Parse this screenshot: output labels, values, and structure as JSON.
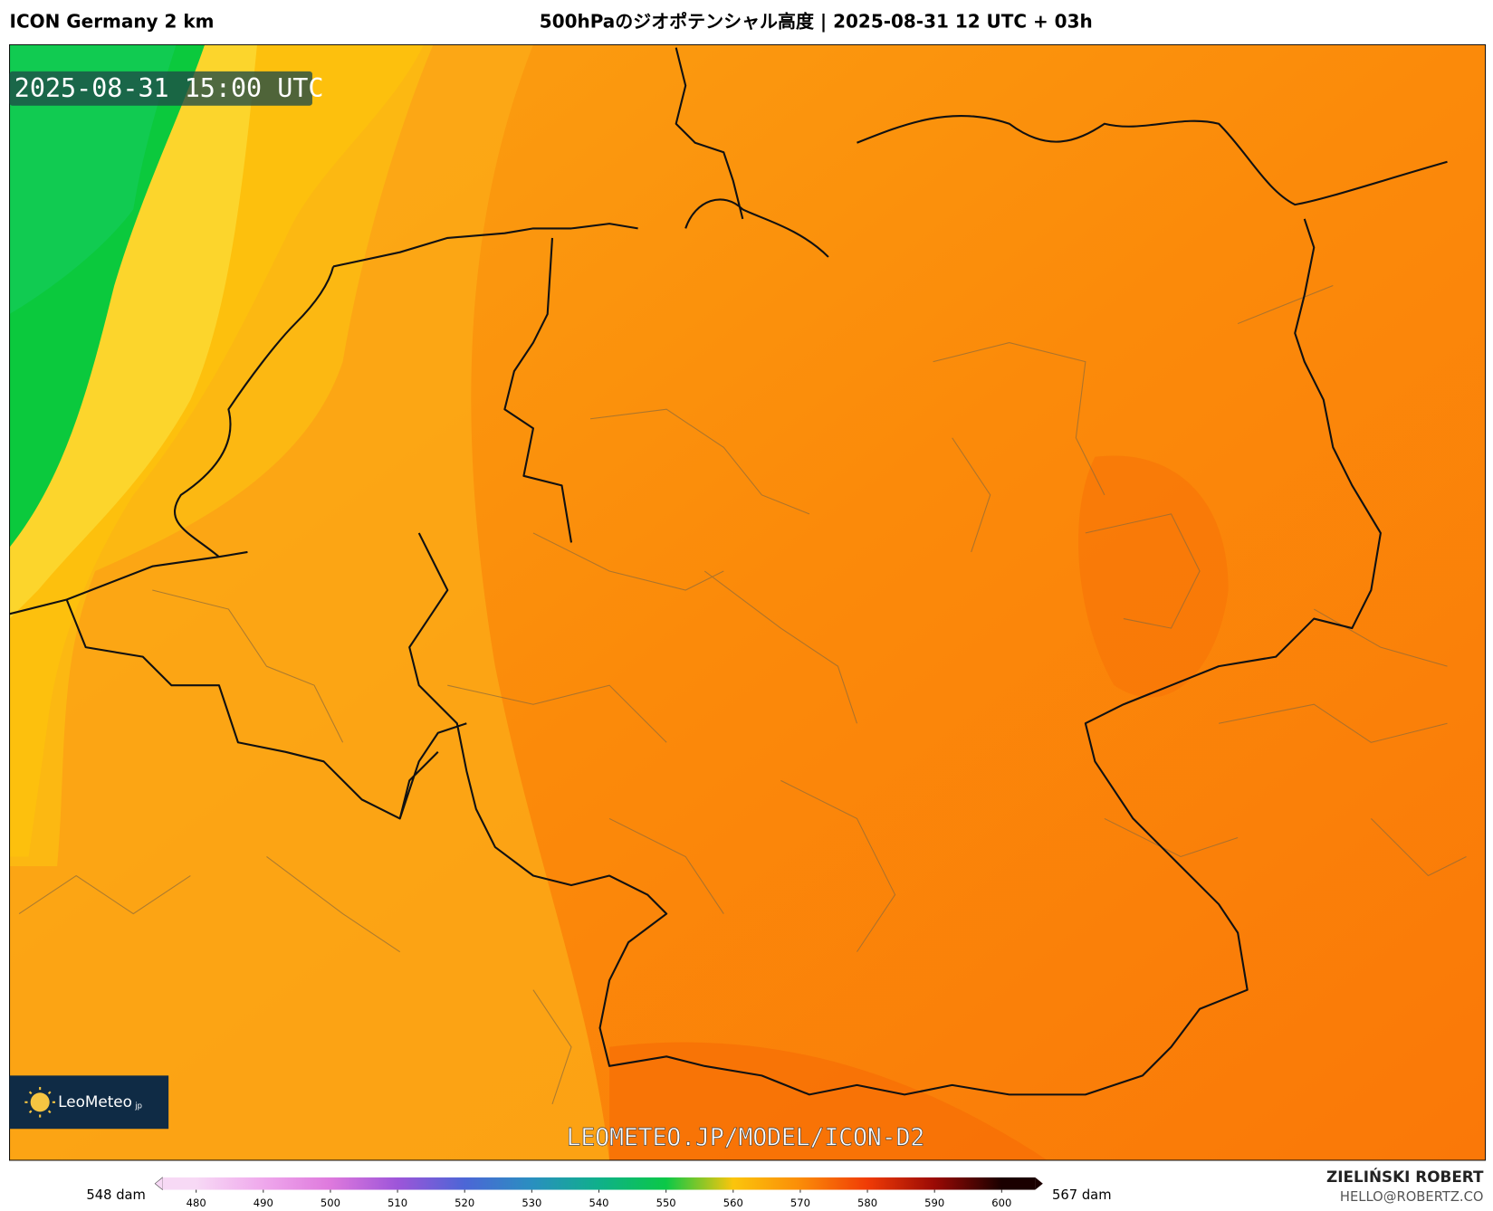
{
  "header": {
    "model": "ICON Germany 2 km",
    "title": "500hPaのジオポテンシャル高度 | 2025-08-31 12 UTC + 03h"
  },
  "map": {
    "valid_time": "2025-08-31 15:00 UTC",
    "watermark": "LEOMETEO.JP/MODEL/ICON-D2",
    "logo": "LeoMeteo",
    "logo_suffix": "jp"
  },
  "colorbar": {
    "min_label": "548 dam",
    "max_label": "567 dam",
    "xlim": [
      475,
      605
    ],
    "ticks": [
      480,
      490,
      500,
      510,
      520,
      530,
      540,
      550,
      560,
      570,
      580,
      590,
      600
    ],
    "colors": [
      "#f7d9f5",
      "#efa8ec",
      "#de79dd",
      "#9d55d9",
      "#4c66d6",
      "#2a8fc0",
      "#0fb08a",
      "#0bc847",
      "#fbc50c",
      "#fb8c08",
      "#f03b06",
      "#9a0a05",
      "#1a0000"
    ]
  },
  "footer": {
    "author": "ZIELIŃSKI ROBERT",
    "email": "HELLO@ROBERTZ.CO"
  }
}
